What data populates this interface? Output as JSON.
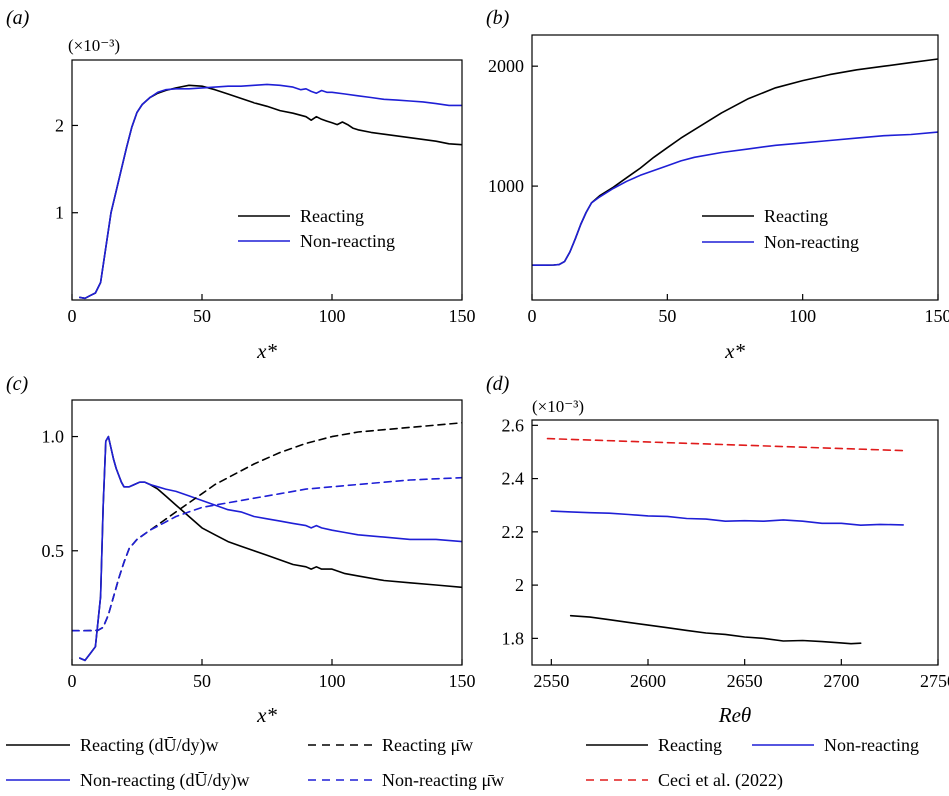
{
  "colors": {
    "reacting": "#000000",
    "non_reacting": "#1f1fd6",
    "ceci": "#e01b1b"
  },
  "chart_data": [
    {
      "id": "a",
      "type": "line",
      "panel_label": "(a)",
      "xlabel": "x*",
      "ylabel": "",
      "y_scale_note": "(×10⁻³)",
      "xlim": [
        0,
        150
      ],
      "ylim": [
        0,
        2.75
      ],
      "xticks": [
        0,
        50,
        100,
        150
      ],
      "xtick_labels": [
        "0",
        "50",
        "100",
        "150"
      ],
      "yticks": [
        1,
        2
      ],
      "ytick_labels": [
        "1",
        "2"
      ],
      "legend": {
        "position": "center-right",
        "entries": [
          "Reacting",
          "Non-reacting"
        ]
      },
      "series": [
        {
          "name": "Reacting",
          "color": "#000000",
          "style": "solid",
          "x": [
            3,
            5,
            7,
            9,
            11,
            13,
            15,
            17,
            19,
            21,
            23,
            25,
            27,
            30,
            33,
            36,
            40,
            45,
            50,
            55,
            60,
            65,
            70,
            75,
            80,
            85,
            90,
            92,
            94,
            96,
            98,
            100,
            102,
            104,
            106,
            108,
            110,
            115,
            120,
            125,
            130,
            135,
            140,
            145,
            150
          ],
          "y": [
            0.03,
            0.02,
            0.05,
            0.08,
            0.2,
            0.6,
            1.0,
            1.25,
            1.5,
            1.75,
            1.98,
            2.15,
            2.24,
            2.32,
            2.37,
            2.4,
            2.43,
            2.46,
            2.45,
            2.41,
            2.36,
            2.31,
            2.26,
            2.22,
            2.17,
            2.14,
            2.1,
            2.06,
            2.1,
            2.07,
            2.05,
            2.03,
            2.01,
            2.04,
            2.01,
            1.97,
            1.95,
            1.92,
            1.9,
            1.88,
            1.86,
            1.84,
            1.82,
            1.79,
            1.78
          ]
        },
        {
          "name": "Non-reacting",
          "color": "#1f1fd6",
          "style": "solid",
          "x": [
            3,
            5,
            7,
            9,
            11,
            13,
            15,
            17,
            19,
            21,
            23,
            25,
            27,
            30,
            33,
            36,
            40,
            45,
            50,
            55,
            60,
            65,
            70,
            75,
            80,
            85,
            88,
            90,
            92,
            94,
            96,
            98,
            100,
            105,
            110,
            115,
            120,
            125,
            130,
            135,
            140,
            145,
            150
          ],
          "y": [
            0.03,
            0.02,
            0.05,
            0.08,
            0.2,
            0.6,
            1.0,
            1.25,
            1.5,
            1.75,
            1.98,
            2.15,
            2.24,
            2.32,
            2.38,
            2.41,
            2.42,
            2.42,
            2.43,
            2.44,
            2.45,
            2.45,
            2.46,
            2.47,
            2.46,
            2.44,
            2.41,
            2.42,
            2.39,
            2.37,
            2.4,
            2.38,
            2.38,
            2.36,
            2.34,
            2.32,
            2.3,
            2.29,
            2.28,
            2.27,
            2.25,
            2.23,
            2.23
          ]
        }
      ]
    },
    {
      "id": "b",
      "type": "line",
      "panel_label": "(b)",
      "xlabel": "x*",
      "ylabel": "",
      "xlim": [
        0,
        150
      ],
      "ylim": [
        50,
        2260
      ],
      "xticks": [
        0,
        50,
        100,
        150
      ],
      "xtick_labels": [
        "0",
        "50",
        "100",
        "150"
      ],
      "yticks": [
        1000,
        2000
      ],
      "ytick_labels": [
        "1000",
        "2000"
      ],
      "legend": {
        "position": "center-right",
        "entries": [
          "Reacting",
          "Non-reacting"
        ]
      },
      "series": [
        {
          "name": "Reacting",
          "color": "#000000",
          "style": "solid",
          "x": [
            0,
            5,
            8,
            10,
            12,
            14,
            16,
            18,
            20,
            22,
            25,
            30,
            35,
            40,
            45,
            50,
            55,
            60,
            70,
            80,
            90,
            100,
            110,
            120,
            130,
            140,
            150
          ],
          "y": [
            340,
            340,
            342,
            345,
            370,
            450,
            560,
            680,
            780,
            860,
            920,
            990,
            1070,
            1150,
            1240,
            1320,
            1400,
            1470,
            1610,
            1730,
            1820,
            1880,
            1930,
            1970,
            2000,
            2030,
            2060
          ]
        },
        {
          "name": "Non-reacting",
          "color": "#1f1fd6",
          "style": "solid",
          "x": [
            0,
            5,
            8,
            10,
            12,
            14,
            16,
            18,
            20,
            22,
            25,
            30,
            35,
            40,
            45,
            50,
            55,
            60,
            70,
            80,
            90,
            100,
            110,
            120,
            130,
            140,
            150
          ],
          "y": [
            340,
            340,
            342,
            345,
            370,
            450,
            560,
            680,
            780,
            860,
            910,
            980,
            1040,
            1090,
            1130,
            1170,
            1210,
            1240,
            1280,
            1310,
            1340,
            1360,
            1380,
            1400,
            1420,
            1430,
            1450
          ]
        }
      ]
    },
    {
      "id": "c",
      "type": "line",
      "panel_label": "(c)",
      "xlabel": "x*",
      "ylabel": "",
      "xlim": [
        0,
        150
      ],
      "ylim": [
        0,
        1.16
      ],
      "xticks": [
        0,
        50,
        100,
        150
      ],
      "xtick_labels": [
        "0",
        "50",
        "100",
        "150"
      ],
      "yticks": [
        0.5,
        1.0
      ],
      "ytick_labels": [
        "0.5",
        "1.0"
      ],
      "series": [
        {
          "name": "Reacting (dŪ/dy)w",
          "color": "#000000",
          "style": "solid",
          "x": [
            3,
            5,
            7,
            9,
            11,
            12,
            13,
            14,
            15,
            16,
            17,
            18,
            19,
            20,
            22,
            24,
            26,
            28,
            30,
            33,
            36,
            40,
            45,
            50,
            55,
            60,
            65,
            70,
            75,
            80,
            85,
            90,
            92,
            94,
            96,
            100,
            105,
            110,
            120,
            130,
            140,
            150
          ],
          "y": [
            0.03,
            0.02,
            0.05,
            0.08,
            0.3,
            0.7,
            0.98,
            1.0,
            0.95,
            0.9,
            0.86,
            0.83,
            0.8,
            0.78,
            0.78,
            0.79,
            0.8,
            0.8,
            0.79,
            0.77,
            0.74,
            0.7,
            0.65,
            0.6,
            0.57,
            0.54,
            0.52,
            0.5,
            0.48,
            0.46,
            0.44,
            0.43,
            0.42,
            0.43,
            0.42,
            0.42,
            0.4,
            0.39,
            0.37,
            0.36,
            0.35,
            0.34
          ]
        },
        {
          "name": "Non-reacting (dŪ/dy)w",
          "color": "#1f1fd6",
          "style": "solid",
          "x": [
            3,
            5,
            7,
            9,
            11,
            12,
            13,
            14,
            15,
            16,
            17,
            18,
            19,
            20,
            22,
            24,
            26,
            28,
            30,
            33,
            36,
            40,
            45,
            50,
            55,
            60,
            65,
            70,
            75,
            80,
            85,
            90,
            92,
            94,
            96,
            100,
            105,
            110,
            120,
            130,
            140,
            150
          ],
          "y": [
            0.03,
            0.02,
            0.05,
            0.08,
            0.3,
            0.7,
            0.98,
            1.0,
            0.95,
            0.9,
            0.86,
            0.83,
            0.8,
            0.78,
            0.78,
            0.79,
            0.8,
            0.8,
            0.79,
            0.78,
            0.77,
            0.76,
            0.74,
            0.72,
            0.7,
            0.68,
            0.67,
            0.65,
            0.64,
            0.63,
            0.62,
            0.61,
            0.6,
            0.61,
            0.6,
            0.59,
            0.58,
            0.57,
            0.56,
            0.55,
            0.55,
            0.54
          ]
        },
        {
          "name": "Reacting μ̄w",
          "color": "#000000",
          "style": "dashed",
          "x": [
            0,
            5,
            8,
            10,
            12,
            14,
            16,
            18,
            20,
            22,
            25,
            30,
            35,
            40,
            45,
            50,
            55,
            60,
            70,
            80,
            90,
            100,
            110,
            120,
            130,
            140,
            150
          ],
          "y": [
            0.15,
            0.15,
            0.151,
            0.152,
            0.165,
            0.22,
            0.3,
            0.38,
            0.45,
            0.51,
            0.55,
            0.59,
            0.63,
            0.67,
            0.71,
            0.75,
            0.79,
            0.82,
            0.88,
            0.93,
            0.97,
            1.0,
            1.02,
            1.03,
            1.04,
            1.05,
            1.06
          ]
        },
        {
          "name": "Non-reacting μ̄w",
          "color": "#1f1fd6",
          "style": "dashed",
          "x": [
            0,
            5,
            8,
            10,
            12,
            14,
            16,
            18,
            20,
            22,
            25,
            30,
            35,
            40,
            45,
            50,
            55,
            60,
            70,
            80,
            90,
            100,
            110,
            120,
            130,
            140,
            150
          ],
          "y": [
            0.15,
            0.15,
            0.151,
            0.152,
            0.165,
            0.22,
            0.3,
            0.38,
            0.45,
            0.51,
            0.55,
            0.59,
            0.62,
            0.65,
            0.67,
            0.69,
            0.7,
            0.71,
            0.73,
            0.75,
            0.77,
            0.78,
            0.79,
            0.8,
            0.81,
            0.815,
            0.82
          ]
        }
      ]
    },
    {
      "id": "d",
      "type": "line",
      "panel_label": "(d)",
      "xlabel": "Reθ",
      "ylabel": "",
      "y_scale_note": "(×10⁻³)",
      "xlim": [
        2540,
        2750
      ],
      "ylim": [
        1.7,
        2.62
      ],
      "xticks": [
        2550,
        2600,
        2650,
        2700,
        2750
      ],
      "xtick_labels": [
        "2550",
        "2600",
        "2650",
        "2700",
        "2750"
      ],
      "yticks": [
        1.8,
        2.0,
        2.2,
        2.4,
        2.6
      ],
      "ytick_labels": [
        "1.8",
        "2",
        "2.2",
        "2.4",
        "2.6"
      ],
      "series": [
        {
          "name": "Reacting",
          "color": "#000000",
          "style": "solid",
          "x": [
            2560,
            2570,
            2580,
            2590,
            2600,
            2610,
            2620,
            2630,
            2640,
            2650,
            2660,
            2670,
            2680,
            2690,
            2700,
            2705,
            2710
          ],
          "y": [
            1.885,
            1.88,
            1.87,
            1.86,
            1.85,
            1.84,
            1.83,
            1.82,
            1.815,
            1.805,
            1.8,
            1.79,
            1.792,
            1.788,
            1.783,
            1.78,
            1.782
          ]
        },
        {
          "name": "Non-reacting",
          "color": "#1f1fd6",
          "style": "solid",
          "x": [
            2550,
            2560,
            2570,
            2580,
            2590,
            2600,
            2610,
            2620,
            2630,
            2640,
            2650,
            2660,
            2670,
            2680,
            2690,
            2700,
            2710,
            2720,
            2732
          ],
          "y": [
            2.278,
            2.275,
            2.272,
            2.27,
            2.265,
            2.26,
            2.258,
            2.25,
            2.248,
            2.24,
            2.242,
            2.24,
            2.245,
            2.24,
            2.232,
            2.232,
            2.225,
            2.228,
            2.226
          ]
        },
        {
          "name": "Ceci et al. (2022)",
          "color": "#e01b1b",
          "style": "dashed",
          "x": [
            2548,
            2732
          ],
          "y": [
            2.55,
            2.505
          ]
        }
      ]
    }
  ],
  "bottom_legend": {
    "items": [
      {
        "label": "Reacting (dŪ/dy)w",
        "color": "#000000",
        "style": "solid"
      },
      {
        "label": "Reacting μ̄w",
        "color": "#000000",
        "style": "dashed"
      },
      {
        "label": "Reacting",
        "color": "#000000",
        "style": "solid"
      },
      {
        "label": "Non-reacting",
        "color": "#1f1fd6",
        "style": "solid"
      },
      {
        "label": "Non-reacting (dŪ/dy)w",
        "color": "#1f1fd6",
        "style": "solid"
      },
      {
        "label": "Non-reacting μ̄w",
        "color": "#1f1fd6",
        "style": "dashed"
      },
      {
        "label": "Ceci et al. (2022)",
        "color": "#e01b1b",
        "style": "dashed"
      }
    ]
  }
}
